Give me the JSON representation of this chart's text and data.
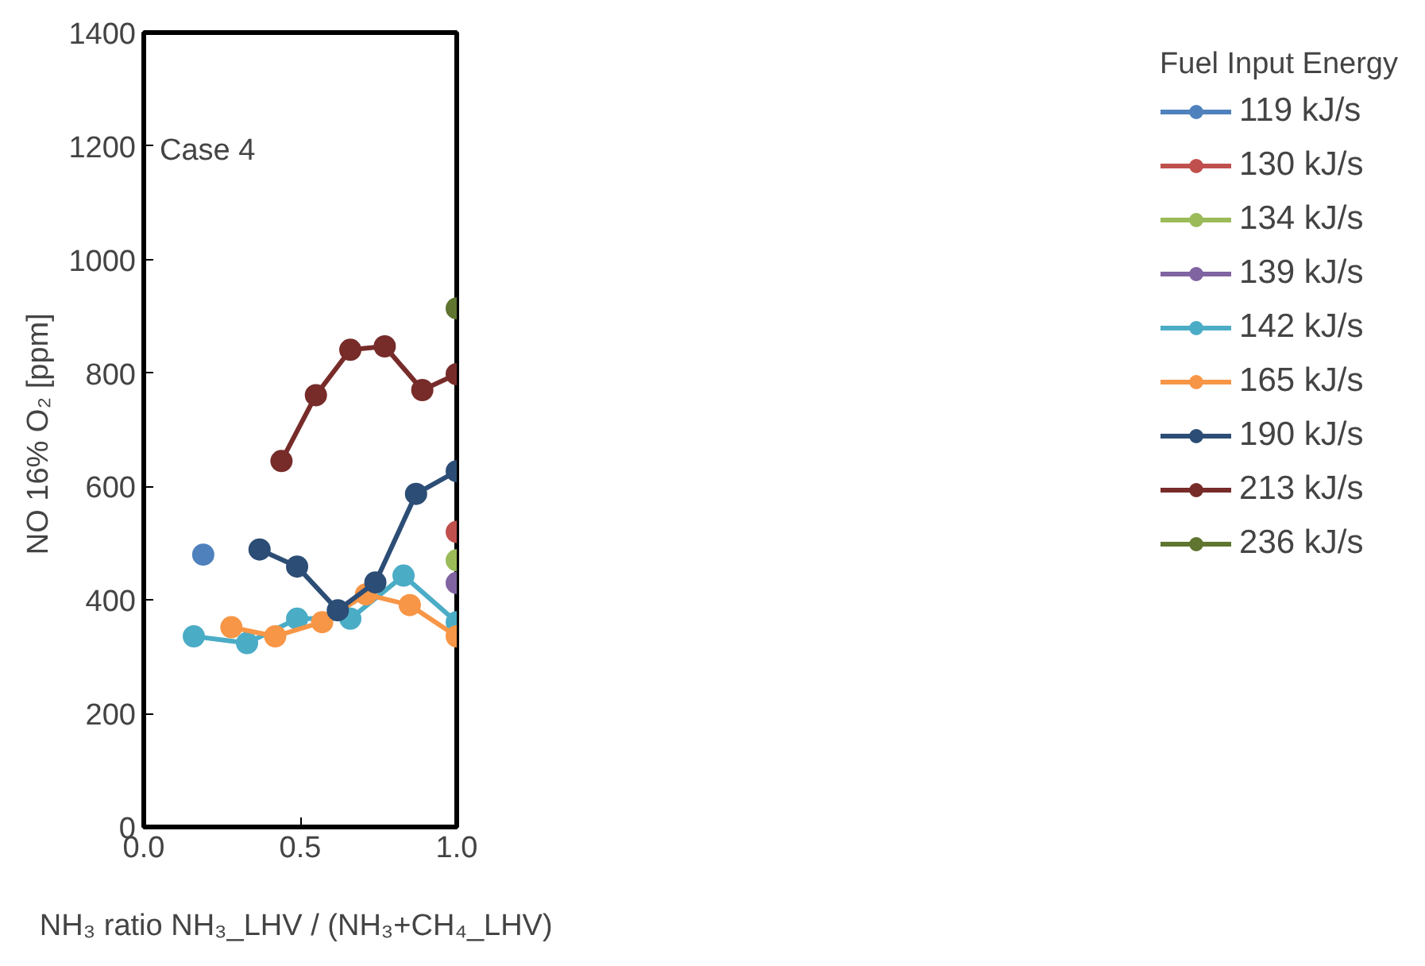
{
  "chart_data": {
    "type": "line",
    "xlabel": "NH₃ ratio  NH₃_LHV / (NH₃+CH₄_LHV)",
    "ylabel": "NO 16% O₂  [ppm]",
    "legend_title": "Fuel Input Energy",
    "annotations": [
      "Case 4"
    ],
    "xlim": [
      0,
      1
    ],
    "xticks": [
      {
        "value": 0,
        "label": "0.0"
      },
      {
        "value": 0.5,
        "label": "0.5"
      },
      {
        "value": 1,
        "label": "1.0"
      }
    ],
    "ylim": [
      0,
      1400
    ],
    "yticks": [
      0,
      200,
      400,
      600,
      800,
      1000,
      1200,
      1400
    ],
    "grid": false,
    "legend": "right",
    "marker": "circle",
    "series": [
      {
        "name": "119 kJ/s",
        "color": "#4f81bd",
        "x": [
          0.19
        ],
        "values": [
          480
        ]
      },
      {
        "name": "130 kJ/s",
        "color": "#c0504d",
        "x": [
          1.0
        ],
        "values": [
          520
        ]
      },
      {
        "name": "134 kJ/s",
        "color": "#9bbb59",
        "x": [
          1.0
        ],
        "values": [
          470
        ]
      },
      {
        "name": "139 kJ/s",
        "color": "#8064a2",
        "x": [
          1.0
        ],
        "values": [
          430
        ]
      },
      {
        "name": "142 kJ/s",
        "color": "#4bacc6",
        "x": [
          0.16,
          0.33,
          0.49,
          0.66,
          0.83,
          1.0
        ],
        "values": [
          336,
          324,
          367,
          367,
          443,
          361
        ]
      },
      {
        "name": "165 kJ/s",
        "color": "#f79646",
        "x": [
          0.28,
          0.42,
          0.57,
          0.71,
          0.85,
          1.0
        ],
        "values": [
          352,
          336,
          361,
          410,
          391,
          336
        ]
      },
      {
        "name": "190 kJ/s",
        "color": "#2c4d75",
        "x": [
          0.37,
          0.49,
          0.62,
          0.74,
          0.87,
          1.0
        ],
        "values": [
          489,
          459,
          382,
          431,
          587,
          627
        ]
      },
      {
        "name": "213 kJ/s",
        "color": "#772c2a",
        "x": [
          0.44,
          0.55,
          0.66,
          0.77,
          0.89,
          1.0
        ],
        "values": [
          645,
          761,
          841,
          847,
          770,
          798
        ]
      },
      {
        "name": "236 kJ/s",
        "color": "#5f7530",
        "x": [
          1.0
        ],
        "values": [
          914
        ]
      }
    ]
  }
}
